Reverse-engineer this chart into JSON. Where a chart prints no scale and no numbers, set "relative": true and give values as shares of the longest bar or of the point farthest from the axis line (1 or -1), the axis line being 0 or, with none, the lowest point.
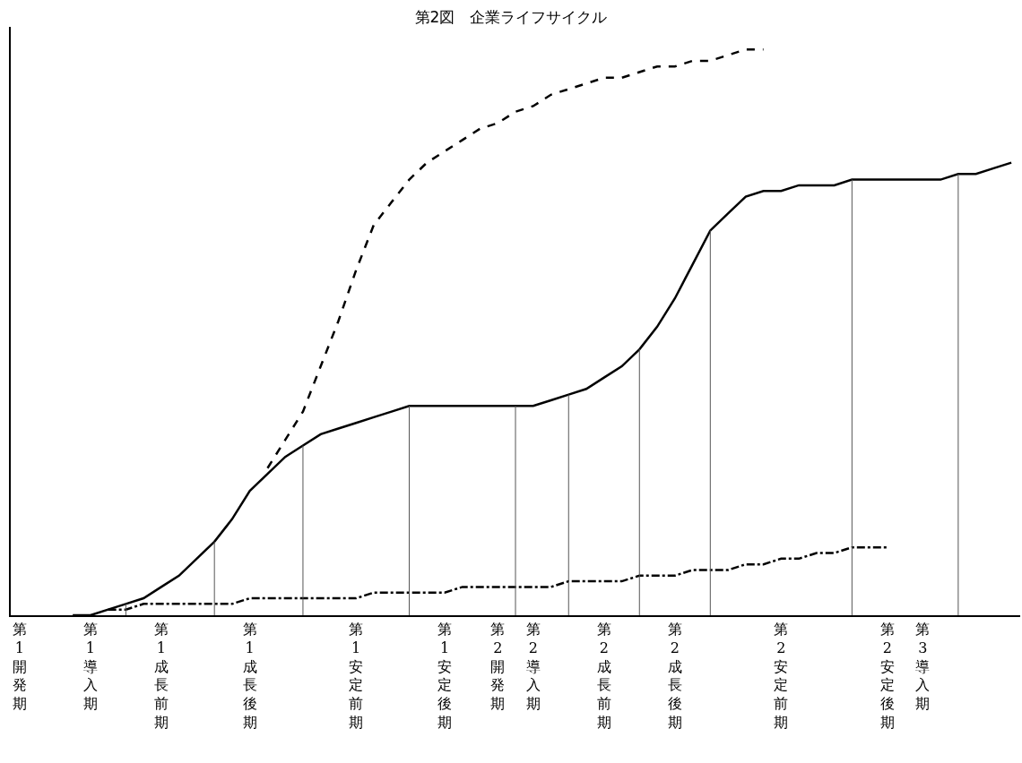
{
  "chart_data": {
    "type": "line",
    "title": "第2図　企業ライフサイクル",
    "relative": true,
    "marker": "none",
    "categories": [
      "第1開発期",
      null,
      null,
      null,
      "第1導入期",
      null,
      null,
      null,
      "第1成長前期",
      null,
      null,
      null,
      null,
      "第1成長後期",
      null,
      null,
      null,
      null,
      null,
      "第1安定前期",
      null,
      null,
      null,
      null,
      "第1安定後期",
      null,
      null,
      "第2開発期",
      null,
      "第2導入期",
      null,
      null,
      null,
      "第2成長前期",
      null,
      null,
      null,
      "第2成長後期",
      null,
      null,
      null,
      null,
      null,
      "第2安定前期",
      null,
      null,
      null,
      null,
      null,
      "第2安定後期",
      null,
      "第3導入期",
      null,
      null,
      null,
      null,
      null
    ],
    "series": [
      {
        "color": "#000000",
        "line_style": "solid",
        "values": [
          null,
          null,
          null,
          0,
          0,
          0.01,
          0.02,
          0.03,
          0.05,
          0.07,
          0.1,
          0.13,
          0.17,
          0.22,
          0.25,
          0.28,
          0.3,
          0.32,
          0.33,
          0.34,
          0.35,
          0.36,
          0.37,
          0.37,
          0.37,
          0.37,
          0.37,
          0.37,
          0.37,
          0.37,
          0.38,
          0.39,
          0.4,
          0.42,
          0.44,
          0.47,
          0.51,
          0.56,
          0.62,
          0.68,
          0.71,
          0.74,
          0.75,
          0.75,
          0.76,
          0.76,
          0.76,
          0.77,
          0.77,
          0.77,
          0.77,
          0.77,
          0.77,
          0.78,
          0.78,
          0.79,
          0.8
        ]
      },
      {
        "color": "#000000",
        "line_style": "dashed",
        "values": [
          null,
          null,
          null,
          null,
          null,
          null,
          null,
          null,
          null,
          null,
          null,
          null,
          null,
          null,
          0.26,
          0.31,
          0.36,
          0.44,
          0.52,
          0.61,
          0.69,
          0.73,
          0.77,
          0.8,
          0.82,
          0.84,
          0.86,
          0.87,
          0.89,
          0.9,
          0.92,
          0.93,
          0.94,
          0.95,
          0.95,
          0.96,
          0.97,
          0.97,
          0.98,
          0.98,
          0.99,
          1.0,
          1.0,
          null,
          null,
          null,
          null,
          null,
          null,
          null,
          null,
          null,
          null,
          null,
          null,
          null,
          null
        ]
      },
      {
        "color": "#000000",
        "line_style": "dashdot",
        "values": [
          null,
          null,
          null,
          null,
          null,
          0.01,
          0.01,
          0.02,
          0.02,
          0.02,
          0.02,
          0.02,
          0.02,
          0.03,
          0.03,
          0.03,
          0.03,
          0.03,
          0.03,
          0.03,
          0.04,
          0.04,
          0.04,
          0.04,
          0.04,
          0.05,
          0.05,
          0.05,
          0.05,
          0.05,
          0.05,
          0.06,
          0.06,
          0.06,
          0.06,
          0.07,
          0.07,
          0.07,
          0.08,
          0.08,
          0.08,
          0.09,
          0.09,
          0.1,
          0.1,
          0.11,
          0.11,
          0.12,
          0.12,
          0.12,
          null,
          null,
          null,
          null,
          null,
          null,
          null
        ]
      }
    ]
  }
}
